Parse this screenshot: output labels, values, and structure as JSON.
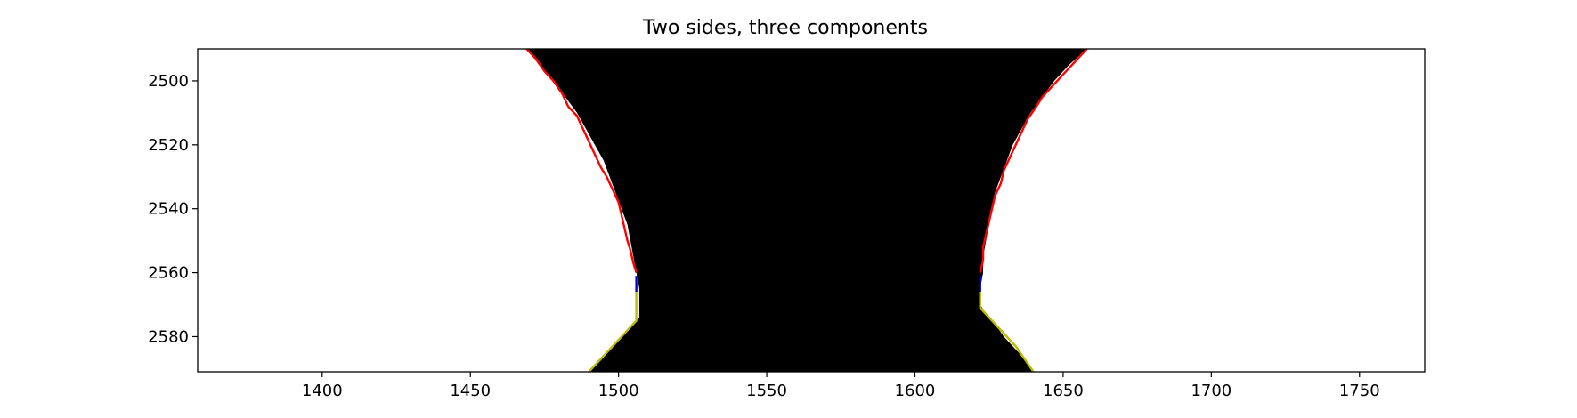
{
  "chart_data": {
    "type": "line",
    "title": "Two sides, three components",
    "xlabel": "",
    "ylabel": "",
    "xlim": [
      1358,
      1772
    ],
    "ylim": [
      2591,
      2490
    ],
    "y_inverted": true,
    "grid": false,
    "legend": "none",
    "x_ticks": [
      1400,
      1450,
      1500,
      1550,
      1600,
      1650,
      1700,
      1750
    ],
    "y_ticks": [
      2500,
      2520,
      2540,
      2560,
      2580
    ],
    "background_image": {
      "description_free": true,
      "fill_color": "#000000",
      "left_edge": [
        [
          2490,
          1469
        ],
        [
          2500,
          1478
        ],
        [
          2505,
          1482
        ],
        [
          2510,
          1486
        ],
        [
          2515,
          1489
        ],
        [
          2520,
          1492
        ],
        [
          2525,
          1495
        ],
        [
          2530,
          1497
        ],
        [
          2535,
          1499
        ],
        [
          2540,
          1501
        ],
        [
          2545,
          1503
        ],
        [
          2550,
          1504
        ],
        [
          2555,
          1505
        ],
        [
          2560,
          1506
        ],
        [
          2565,
          1507
        ],
        [
          2570,
          1507
        ],
        [
          2574,
          1507
        ],
        [
          2578,
          1503
        ],
        [
          2582,
          1499
        ],
        [
          2586,
          1495
        ],
        [
          2591,
          1490
        ]
      ],
      "right_edge": [
        [
          2490,
          1658
        ],
        [
          2495,
          1652
        ],
        [
          2500,
          1647
        ],
        [
          2505,
          1643
        ],
        [
          2510,
          1639
        ],
        [
          2515,
          1636
        ],
        [
          2520,
          1633
        ],
        [
          2525,
          1631
        ],
        [
          2530,
          1629
        ],
        [
          2535,
          1627
        ],
        [
          2540,
          1626
        ],
        [
          2545,
          1625
        ],
        [
          2550,
          1624
        ],
        [
          2555,
          1623
        ],
        [
          2560,
          1623
        ],
        [
          2565,
          1622
        ],
        [
          2570,
          1622
        ],
        [
          2573,
          1624
        ],
        [
          2576,
          1627
        ],
        [
          2580,
          1630
        ],
        [
          2585,
          1635
        ],
        [
          2591,
          1640
        ]
      ]
    },
    "series": [
      {
        "color": "#ff0000",
        "points": [
          [
            1469,
            2490
          ],
          [
            1472,
            2493
          ],
          [
            1475,
            2497
          ],
          [
            1478,
            2500
          ],
          [
            1481,
            2504
          ],
          [
            1483,
            2508
          ],
          [
            1486,
            2511
          ],
          [
            1488,
            2515
          ],
          [
            1490,
            2519
          ],
          [
            1492,
            2523
          ],
          [
            1494,
            2527
          ],
          [
            1496,
            2530
          ],
          [
            1498,
            2534
          ],
          [
            1500,
            2538
          ],
          [
            1501,
            2542
          ],
          [
            1502,
            2546
          ],
          [
            1503,
            2550
          ],
          [
            1504,
            2553
          ],
          [
            1505,
            2557
          ],
          [
            1506,
            2560
          ]
        ]
      },
      {
        "color": "#ff0000",
        "points": [
          [
            1658,
            2490
          ],
          [
            1655,
            2493
          ],
          [
            1652,
            2496
          ],
          [
            1649,
            2499
          ],
          [
            1646,
            2502
          ],
          [
            1643,
            2505
          ],
          [
            1641,
            2508
          ],
          [
            1638,
            2512
          ],
          [
            1636,
            2516
          ],
          [
            1634,
            2520
          ],
          [
            1632,
            2524
          ],
          [
            1630,
            2528
          ],
          [
            1629,
            2532
          ],
          [
            1627,
            2536
          ],
          [
            1626,
            2540
          ],
          [
            1625,
            2544
          ],
          [
            1624,
            2548
          ],
          [
            1623,
            2552
          ],
          [
            1623,
            2556
          ],
          [
            1622,
            2560
          ]
        ]
      },
      {
        "color": "#0000cc",
        "points": [
          [
            1506,
            2561
          ],
          [
            1506,
            2566
          ]
        ]
      },
      {
        "color": "#0000cc",
        "points": [
          [
            1622,
            2561
          ],
          [
            1622,
            2566
          ]
        ]
      },
      {
        "color": "#bbbb00",
        "points": [
          [
            1506,
            2566
          ],
          [
            1506,
            2575
          ],
          [
            1503,
            2578
          ],
          [
            1500,
            2581
          ],
          [
            1497,
            2584
          ],
          [
            1494,
            2587
          ],
          [
            1490,
            2591
          ]
        ]
      },
      {
        "color": "#bbbb00",
        "points": [
          [
            1622,
            2566
          ],
          [
            1622,
            2571
          ],
          [
            1625,
            2574
          ],
          [
            1628,
            2577
          ],
          [
            1631,
            2580
          ],
          [
            1634,
            2583
          ],
          [
            1637,
            2587
          ],
          [
            1640,
            2591
          ]
        ]
      }
    ]
  }
}
